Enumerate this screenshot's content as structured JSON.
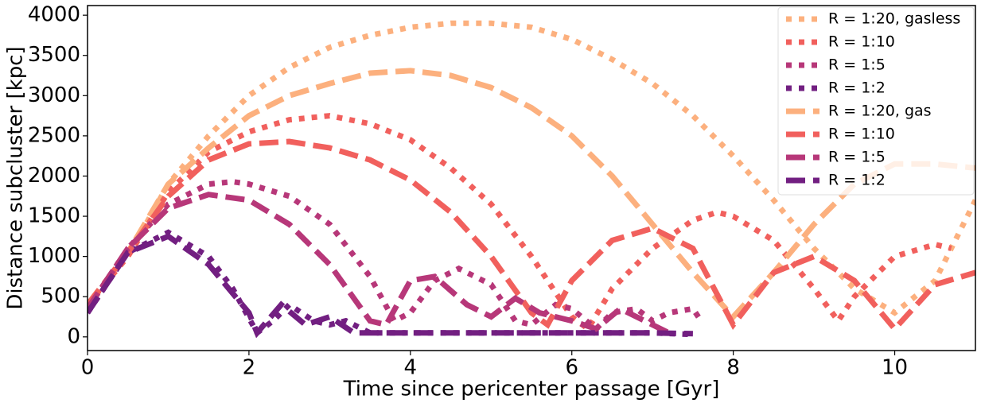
{
  "chart_data": {
    "type": "line",
    "xlabel": "Time since pericenter passage [Gyr]",
    "ylabel": "Distance subcluster [kpc]",
    "xlim": [
      0,
      11
    ],
    "ylim": [
      -170,
      4120
    ],
    "xticks": [
      0,
      2,
      4,
      6,
      8,
      10
    ],
    "yticks": [
      0,
      500,
      1000,
      1500,
      2000,
      2500,
      3000,
      3500,
      4000
    ],
    "legend": "upper right",
    "series": [
      {
        "name": "R = 1:20, gasless",
        "color": "#fcb07e",
        "style": "dotted",
        "x": [
          0,
          0.5,
          1,
          1.5,
          2,
          2.5,
          3,
          3.5,
          4,
          4.5,
          5,
          5.5,
          6,
          6.5,
          7,
          7.5,
          8,
          8.5,
          9,
          9.5,
          10,
          10.5,
          11
        ],
        "values": [
          400,
          1000,
          1900,
          2500,
          3000,
          3350,
          3600,
          3750,
          3850,
          3900,
          3900,
          3850,
          3700,
          3450,
          3150,
          2750,
          2250,
          1700,
          1100,
          600,
          300,
          700,
          1700
        ]
      },
      {
        "name": "R = 1:10",
        "color": "#f1605d",
        "style": "dotted",
        "x": [
          0,
          0.5,
          1,
          1.5,
          2,
          2.5,
          3,
          3.5,
          4,
          4.5,
          5,
          5.5,
          6,
          6.2,
          6.5,
          7,
          7.5,
          7.8,
          8,
          8.5,
          9,
          9.3,
          9.5,
          10,
          10.5,
          10.7
        ],
        "values": [
          400,
          1000,
          1800,
          2300,
          2550,
          2700,
          2750,
          2650,
          2450,
          2100,
          1650,
          1000,
          250,
          100,
          600,
          1100,
          1450,
          1550,
          1500,
          1200,
          600,
          200,
          500,
          1000,
          1150,
          1100
        ]
      },
      {
        "name": "R = 1:5",
        "color": "#b73779",
        "style": "dotted",
        "x": [
          0,
          0.5,
          1,
          1.5,
          1.8,
          2,
          2.5,
          3,
          3.5,
          3.8,
          4,
          4.3,
          4.6,
          5,
          5.3,
          5.5,
          5.8,
          6,
          6.3,
          6.5,
          6.8,
          7,
          7.2,
          7.5,
          7.6
        ],
        "values": [
          350,
          1100,
          1650,
          1900,
          1930,
          1900,
          1750,
          1400,
          750,
          200,
          300,
          700,
          850,
          650,
          200,
          150,
          400,
          350,
          100,
          300,
          350,
          200,
          300,
          350,
          200
        ]
      },
      {
        "name": "R = 1:2",
        "color": "#721f81",
        "style": "dotted",
        "x": [
          0,
          0.5,
          1,
          1.5,
          1.8,
          2.1,
          2.3,
          2.5,
          2.8,
          3,
          3.2,
          3.5,
          4,
          5,
          6,
          7,
          7.5
        ],
        "values": [
          300,
          1050,
          1300,
          1000,
          600,
          50,
          200,
          400,
          200,
          150,
          200,
          50,
          50,
          50,
          50,
          50,
          30
        ]
      },
      {
        "name": "R = 1:20, gas",
        "color": "#fcb07e",
        "style": "dashed",
        "x": [
          0,
          0.5,
          1,
          1.5,
          2,
          2.5,
          3,
          3.5,
          4,
          4.5,
          5,
          5.5,
          6,
          6.5,
          7,
          7.5,
          8,
          8.5,
          9,
          9.5,
          10,
          10.5,
          11
        ],
        "values": [
          400,
          1050,
          1900,
          2350,
          2750,
          3000,
          3150,
          3280,
          3310,
          3250,
          3100,
          2850,
          2500,
          2000,
          1400,
          800,
          250,
          800,
          1400,
          1900,
          2150,
          2150,
          2100
        ]
      },
      {
        "name": "R = 1:10",
        "color": "#f1605d",
        "style": "dashed",
        "x": [
          0,
          0.5,
          1,
          1.5,
          2,
          2.5,
          3,
          3.5,
          4,
          4.5,
          5,
          5.5,
          5.7,
          6,
          6.5,
          7,
          7.5,
          8,
          8.5,
          9,
          9.5,
          10,
          10.5,
          11
        ],
        "values": [
          400,
          1050,
          1750,
          2200,
          2400,
          2430,
          2350,
          2200,
          1950,
          1550,
          1000,
          300,
          150,
          700,
          1200,
          1350,
          1100,
          150,
          800,
          1000,
          700,
          100,
          650,
          800
        ]
      },
      {
        "name": "R = 1:5",
        "color": "#b73779",
        "style": "dashed",
        "x": [
          0,
          0.5,
          1,
          1.5,
          2,
          2.5,
          3,
          3.5,
          3.7,
          4,
          4.3,
          4.7,
          5,
          5.3,
          5.6,
          6,
          6.3,
          6.6,
          7,
          7.2
        ],
        "values": [
          350,
          1100,
          1600,
          1770,
          1700,
          1400,
          900,
          200,
          150,
          700,
          750,
          400,
          250,
          480,
          300,
          200,
          100,
          350,
          150,
          50
        ]
      },
      {
        "name": "R = 1:2",
        "color": "#721f81",
        "style": "dashed",
        "x": [
          0,
          0.5,
          1,
          1.5,
          2,
          2.1,
          2.4,
          2.7,
          3,
          3.3,
          4,
          5,
          6,
          7,
          7.5
        ],
        "values": [
          300,
          1050,
          1250,
          900,
          300,
          50,
          400,
          150,
          250,
          50,
          50,
          50,
          50,
          50,
          40
        ]
      }
    ]
  }
}
